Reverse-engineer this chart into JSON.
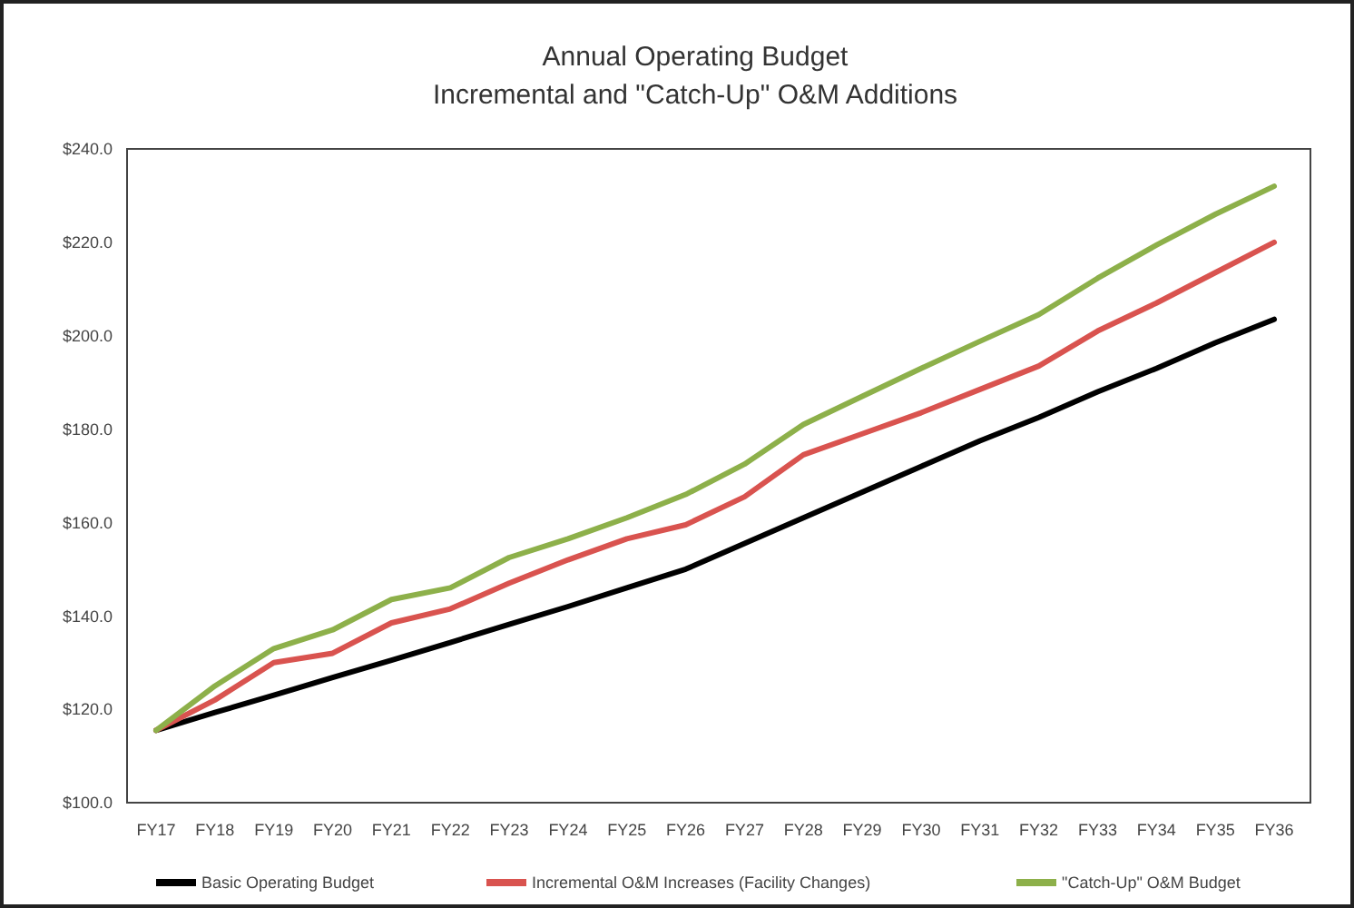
{
  "chart_data": {
    "type": "line",
    "title": "Annual Operating Budget",
    "subtitle": "Incremental and \"Catch-Up\" O&M Additions",
    "categories": [
      "FY17",
      "FY18",
      "FY19",
      "FY20",
      "FY21",
      "FY22",
      "FY23",
      "FY24",
      "FY25",
      "FY26",
      "FY27",
      "FY28",
      "FY29",
      "FY30",
      "FY31",
      "FY32",
      "FY33",
      "FY34",
      "FY35",
      "FY36"
    ],
    "series": [
      {
        "name": "Basic Operating Budget",
        "color": "#000000",
        "values": [
          115.5,
          119.3,
          123,
          126.8,
          130.5,
          134.3,
          138.2,
          142,
          146,
          150,
          155.5,
          161,
          166.5,
          172,
          177.5,
          182.5,
          188,
          193,
          198.5,
          203.5
        ]
      },
      {
        "name": "Incremental O&M Increases (Facility Changes)",
        "color": "#d9534f",
        "values": [
          115.5,
          122,
          130,
          132,
          138.5,
          141.5,
          147,
          152,
          156.5,
          159.5,
          165.5,
          174.5,
          179,
          183.5,
          188.5,
          193.5,
          201,
          207,
          213.5,
          220
        ]
      },
      {
        "name": "\"Catch-Up\" O&M Budget",
        "color": "#8db04a",
        "values": [
          115.5,
          125,
          133,
          137,
          143.5,
          146,
          152.5,
          156.5,
          161,
          166,
          172.5,
          181,
          187,
          193,
          198.8,
          204.5,
          212.3,
          219.4,
          226,
          232
        ]
      }
    ],
    "ylim": [
      100,
      240
    ],
    "yticks": [
      {
        "value": 100,
        "label": "$100.0"
      },
      {
        "value": 120,
        "label": "$120.0"
      },
      {
        "value": 140,
        "label": "$140.0"
      },
      {
        "value": 160,
        "label": "$160.0"
      },
      {
        "value": 180,
        "label": "$180.0"
      },
      {
        "value": 200,
        "label": "$200.0"
      },
      {
        "value": 220,
        "label": "$220.0"
      },
      {
        "value": 240,
        "label": "$240.0"
      }
    ],
    "grid": false,
    "legend": "bottom",
    "line_style": "solid",
    "marker": "none"
  }
}
